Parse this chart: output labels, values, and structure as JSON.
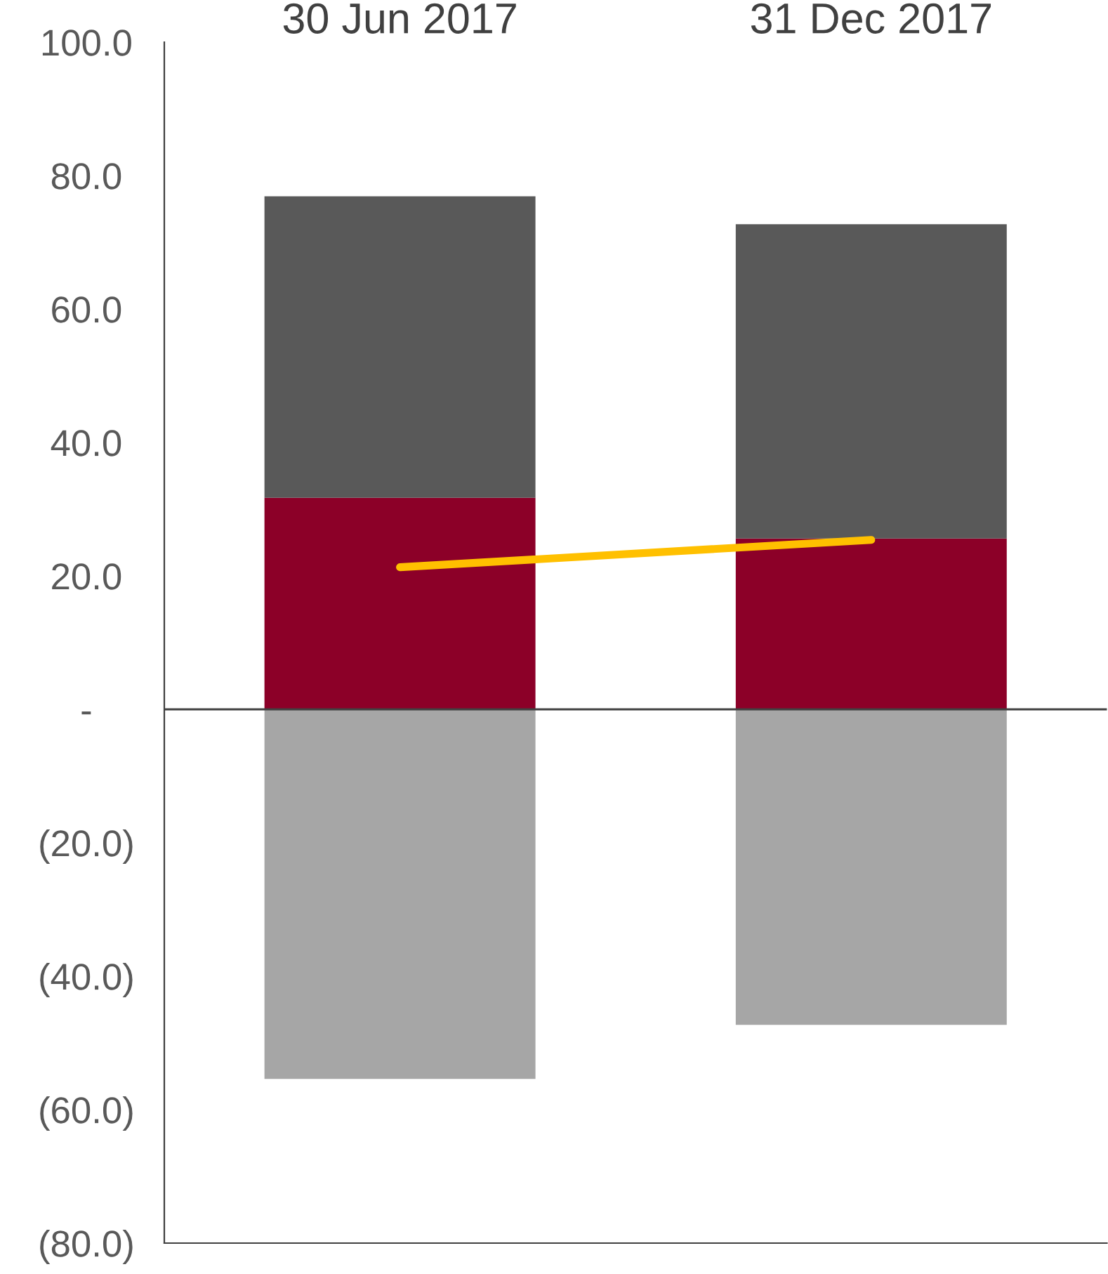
{
  "chart_data": {
    "type": "bar",
    "stacked": true,
    "categories": [
      "30 Jun 2017",
      "31 Dec 2017"
    ],
    "series": [
      {
        "color": "#8c0028",
        "values": [
          31.7,
          25.6
        ]
      },
      {
        "color": "#595959",
        "values": [
          45.2,
          47.1
        ]
      },
      {
        "color": "#a6a6a6",
        "values": [
          -55.4,
          -47.3
        ]
      },
      {
        "type": "line",
        "color": "#ffc000",
        "values": [
          21.3,
          25.4
        ]
      }
    ],
    "ylim": [
      -80,
      100
    ],
    "yticks": [
      {
        "value": 100,
        "label": "100.0"
      },
      {
        "value": 80,
        "label": "80.0"
      },
      {
        "value": 60,
        "label": "60.0"
      },
      {
        "value": 40,
        "label": "40.0"
      },
      {
        "value": 20,
        "label": "20.0"
      },
      {
        "value": 0,
        "label": "-"
      },
      {
        "value": -20,
        "label": "(20.0)"
      },
      {
        "value": -40,
        "label": "(40.0)"
      },
      {
        "value": -60,
        "label": "(60.0)"
      },
      {
        "value": -80,
        "label": "(80.0)"
      }
    ],
    "ref_lines": [
      {
        "axis": "y",
        "value": 0,
        "color": "#404040"
      }
    ]
  }
}
